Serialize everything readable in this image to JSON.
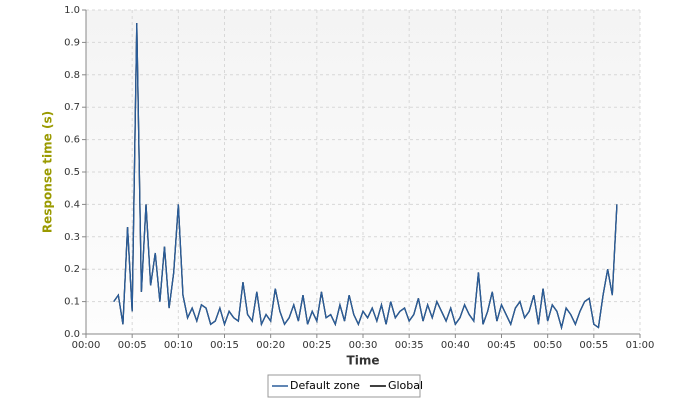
{
  "chart_data": {
    "type": "line",
    "x_label": "Time",
    "y_label": "Response time (s)",
    "xlim": [
      0,
      60
    ],
    "ylim": [
      0,
      1
    ],
    "xticks": [
      {
        "value": 0,
        "label": "00:00"
      },
      {
        "value": 5,
        "label": "00:05"
      },
      {
        "value": 10,
        "label": "00:10"
      },
      {
        "value": 15,
        "label": "00:15"
      },
      {
        "value": 20,
        "label": "00:20"
      },
      {
        "value": 25,
        "label": "00:25"
      },
      {
        "value": 30,
        "label": "00:30"
      },
      {
        "value": 35,
        "label": "00:35"
      },
      {
        "value": 40,
        "label": "00:40"
      },
      {
        "value": 45,
        "label": "00:45"
      },
      {
        "value": 50,
        "label": "00:50"
      },
      {
        "value": 55,
        "label": "00:55"
      },
      {
        "value": 60,
        "label": "01:00"
      }
    ],
    "yticks": [
      {
        "value": 0,
        "label": "0.0"
      },
      {
        "value": 0.1,
        "label": "0.1"
      },
      {
        "value": 0.2,
        "label": "0.2"
      },
      {
        "value": 0.3,
        "label": "0.3"
      },
      {
        "value": 0.4,
        "label": "0.4"
      },
      {
        "value": 0.5,
        "label": "0.5"
      },
      {
        "value": 0.6,
        "label": "0.6"
      },
      {
        "value": 0.7,
        "label": "0.7"
      },
      {
        "value": 0.8,
        "label": "0.8"
      },
      {
        "value": 0.9,
        "label": "0.9"
      },
      {
        "value": 1,
        "label": "1.0"
      }
    ],
    "grid": true,
    "x": [
      3,
      3.5,
      4,
      4.5,
      5,
      5.5,
      6,
      6.5,
      7,
      7.5,
      8,
      8.5,
      9,
      9.5,
      10,
      10.5,
      11,
      11.5,
      12,
      12.5,
      13,
      13.5,
      14,
      14.5,
      15,
      15.5,
      16,
      16.5,
      17,
      17.5,
      18,
      18.5,
      19,
      19.5,
      20,
      20.5,
      21,
      21.5,
      22,
      22.5,
      23,
      23.5,
      24,
      24.5,
      25,
      25.5,
      26,
      26.5,
      27,
      27.5,
      28,
      28.5,
      29,
      29.5,
      30,
      30.5,
      31,
      31.5,
      32,
      32.5,
      33,
      33.5,
      34,
      34.5,
      35,
      35.5,
      36,
      36.5,
      37,
      37.5,
      38,
      38.5,
      39,
      39.5,
      40,
      40.5,
      41,
      41.5,
      42,
      42.5,
      43,
      43.5,
      44,
      44.5,
      45,
      45.5,
      46,
      46.5,
      47,
      47.5,
      48,
      48.5,
      49,
      49.5,
      50,
      50.5,
      51,
      51.5,
      52,
      52.5,
      53,
      53.5,
      54,
      54.5,
      55,
      55.5,
      56,
      56.5,
      57,
      57.5
    ],
    "series": [
      {
        "name": "Global",
        "color": "#000000",
        "values": [
          0.1,
          0.12,
          0.03,
          0.33,
          0.07,
          0.96,
          0.13,
          0.4,
          0.15,
          0.25,
          0.1,
          0.27,
          0.08,
          0.19,
          0.4,
          0.12,
          0.05,
          0.08,
          0.04,
          0.09,
          0.08,
          0.03,
          0.04,
          0.08,
          0.03,
          0.07,
          0.05,
          0.04,
          0.16,
          0.06,
          0.04,
          0.13,
          0.03,
          0.06,
          0.04,
          0.14,
          0.07,
          0.03,
          0.05,
          0.09,
          0.04,
          0.12,
          0.03,
          0.07,
          0.04,
          0.13,
          0.05,
          0.06,
          0.03,
          0.09,
          0.04,
          0.12,
          0.06,
          0.03,
          0.07,
          0.05,
          0.08,
          0.04,
          0.09,
          0.03,
          0.1,
          0.05,
          0.07,
          0.08,
          0.04,
          0.06,
          0.11,
          0.04,
          0.09,
          0.05,
          0.1,
          0.07,
          0.04,
          0.08,
          0.03,
          0.05,
          0.09,
          0.06,
          0.04,
          0.19,
          0.03,
          0.07,
          0.13,
          0.04,
          0.09,
          0.06,
          0.03,
          0.08,
          0.1,
          0.05,
          0.07,
          0.12,
          0.03,
          0.14,
          0.04,
          0.09,
          0.07,
          0.02,
          0.08,
          0.06,
          0.03,
          0.07,
          0.1,
          0.11,
          0.03,
          0.02,
          0.12,
          0.2,
          0.12,
          0.4
        ]
      },
      {
        "name": "Default zone",
        "color": "#2a5d9a",
        "values": [
          0.1,
          0.12,
          0.03,
          0.33,
          0.07,
          0.96,
          0.13,
          0.4,
          0.15,
          0.25,
          0.1,
          0.27,
          0.08,
          0.19,
          0.4,
          0.12,
          0.05,
          0.08,
          0.04,
          0.09,
          0.08,
          0.03,
          0.04,
          0.08,
          0.03,
          0.07,
          0.05,
          0.04,
          0.16,
          0.06,
          0.04,
          0.13,
          0.03,
          0.06,
          0.04,
          0.14,
          0.07,
          0.03,
          0.05,
          0.09,
          0.04,
          0.12,
          0.03,
          0.07,
          0.04,
          0.13,
          0.05,
          0.06,
          0.03,
          0.09,
          0.04,
          0.12,
          0.06,
          0.03,
          0.07,
          0.05,
          0.08,
          0.04,
          0.09,
          0.03,
          0.1,
          0.05,
          0.07,
          0.08,
          0.04,
          0.06,
          0.11,
          0.04,
          0.09,
          0.05,
          0.1,
          0.07,
          0.04,
          0.08,
          0.03,
          0.05,
          0.09,
          0.06,
          0.04,
          0.19,
          0.03,
          0.07,
          0.13,
          0.04,
          0.09,
          0.06,
          0.03,
          0.08,
          0.1,
          0.05,
          0.07,
          0.12,
          0.03,
          0.14,
          0.04,
          0.09,
          0.07,
          0.02,
          0.08,
          0.06,
          0.03,
          0.07,
          0.1,
          0.11,
          0.03,
          0.02,
          0.12,
          0.2,
          0.12,
          0.4
        ]
      }
    ]
  }
}
